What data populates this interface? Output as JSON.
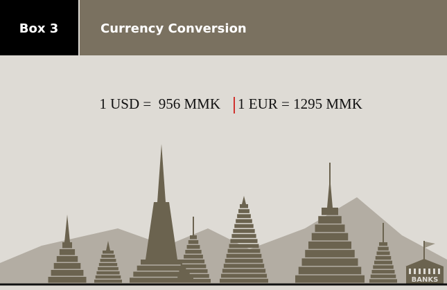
{
  "header": {
    "label": "Box 3",
    "title": "Currency Conversion"
  },
  "rates": [
    "1 USD =  956 MMK",
    "1 EUR = 1295 MMK"
  ],
  "bank_sign": "BANKS"
}
